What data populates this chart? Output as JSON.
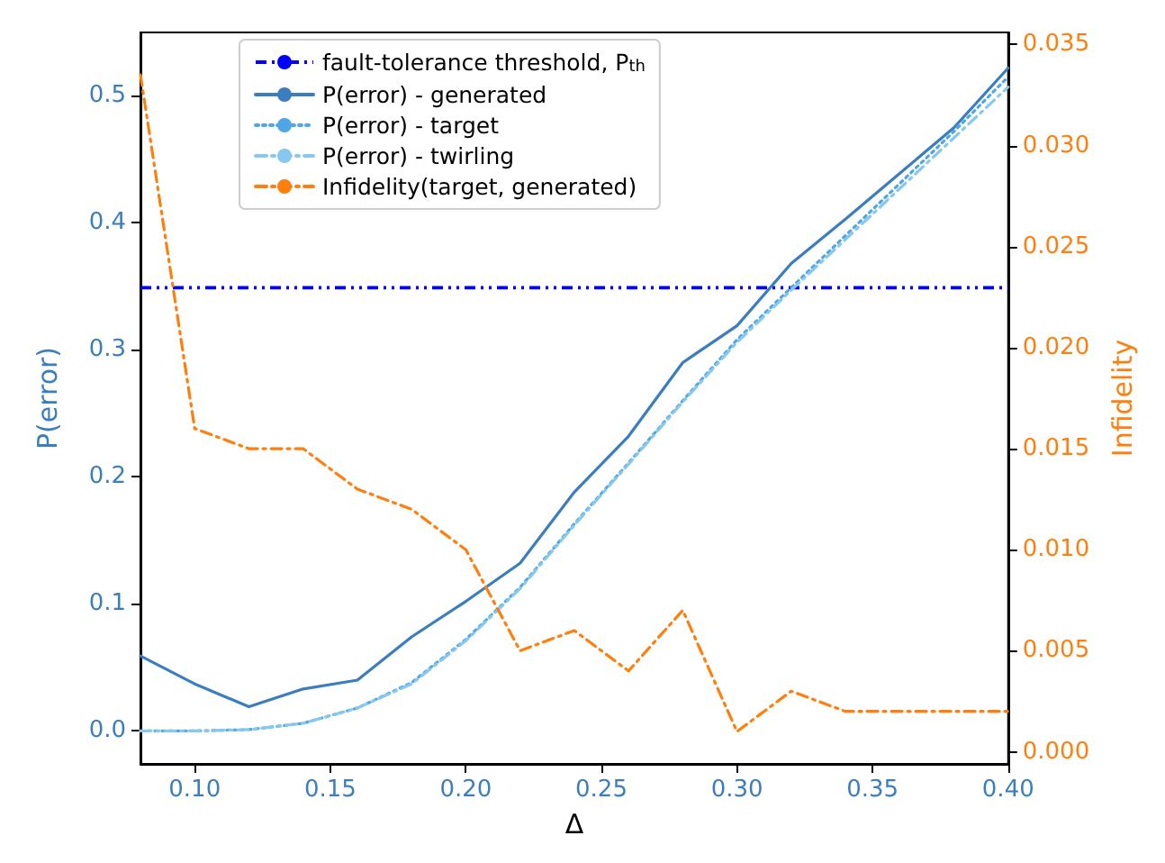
{
  "chart_data": {
    "type": "line",
    "xlabel": "Δ",
    "ylabel": "P(error)",
    "y2label": "Infidelity",
    "x": [
      0.08,
      0.1,
      0.12,
      0.14,
      0.16,
      0.18,
      0.2,
      0.22,
      0.24,
      0.26,
      0.28,
      0.3,
      0.32,
      0.34,
      0.36,
      0.38,
      0.4
    ],
    "series": [
      {
        "name": "P(error) - generated",
        "color": "#3a7ebf",
        "line_style": "solid",
        "values": [
          0.059,
          0.037,
          0.019,
          0.033,
          0.04,
          0.074,
          0.102,
          0.132,
          0.188,
          0.232,
          0.29,
          0.319,
          0.368,
          0.403,
          0.439,
          0.475,
          0.522
        ]
      },
      {
        "name": "P(error) - target",
        "color": "#4da6e8",
        "line_style": "dotted",
        "values": [
          0,
          0,
          0.001,
          0.006,
          0.018,
          0.038,
          0.072,
          0.113,
          0.163,
          0.211,
          0.26,
          0.308,
          0.349,
          0.39,
          0.431,
          0.472,
          0.515
        ]
      },
      {
        "name": "P(error) - twirling",
        "color": "#87c8ee",
        "line_style": "dashed",
        "values": [
          0,
          0,
          0.001,
          0.006,
          0.018,
          0.037,
          0.071,
          0.112,
          0.162,
          0.21,
          0.259,
          0.306,
          0.347,
          0.387,
          0.427,
          0.467,
          0.507
        ]
      },
      {
        "name": "Infidelity(target, generated)",
        "color": "#ff7f0e",
        "line_style": "dashed",
        "axis": "y2",
        "values": [
          0.0335,
          0.016,
          0.015,
          0.015,
          0.013,
          0.012,
          0.01,
          0.005,
          0.006,
          0.004,
          0.007,
          0.001,
          0.003,
          0.002,
          0.002,
          0.002,
          0.002
        ]
      }
    ],
    "ref_lines": [
      {
        "axis": "y",
        "value": 0.349,
        "label": "fault-tolerance threshold, P$_{th}$",
        "color": "#0000ff",
        "line_style": "dashed"
      }
    ],
    "xlim": [
      0.08,
      0.4
    ],
    "xticks": [
      {
        "value": 0.1,
        "label": "0.10"
      },
      {
        "value": 0.15,
        "label": "0.15"
      },
      {
        "value": 0.2,
        "label": "0.20"
      },
      {
        "value": 0.25,
        "label": "0.25"
      },
      {
        "value": 0.3,
        "label": "0.30"
      },
      {
        "value": 0.35,
        "label": "0.35"
      },
      {
        "value": 0.4,
        "label": "0.40"
      }
    ],
    "ylim": [
      -0.026,
      0.55
    ],
    "yticks": [
      {
        "value": 0,
        "label": "0.0"
      },
      {
        "value": 0.1,
        "label": "0.1"
      },
      {
        "value": 0.2,
        "label": "0.2"
      },
      {
        "value": 0.3,
        "label": "0.3"
      },
      {
        "value": 0.4,
        "label": "0.4"
      },
      {
        "value": 0.5,
        "label": "0.5"
      }
    ],
    "y2lim": [
      -0.0006,
      0.0356
    ],
    "y2ticks": [
      {
        "value": 0,
        "label": "0.000"
      },
      {
        "value": 0.005,
        "label": "0.005"
      },
      {
        "value": 0.01,
        "label": "0.010"
      },
      {
        "value": 0.015,
        "label": "0.015"
      },
      {
        "value": 0.02,
        "label": "0.020"
      },
      {
        "value": 0.025,
        "label": "0.025"
      },
      {
        "value": 0.03,
        "label": "0.030"
      },
      {
        "value": 0.035,
        "label": "0.035"
      }
    ],
    "legend": "top",
    "grid": false,
    "marker": "none"
  }
}
